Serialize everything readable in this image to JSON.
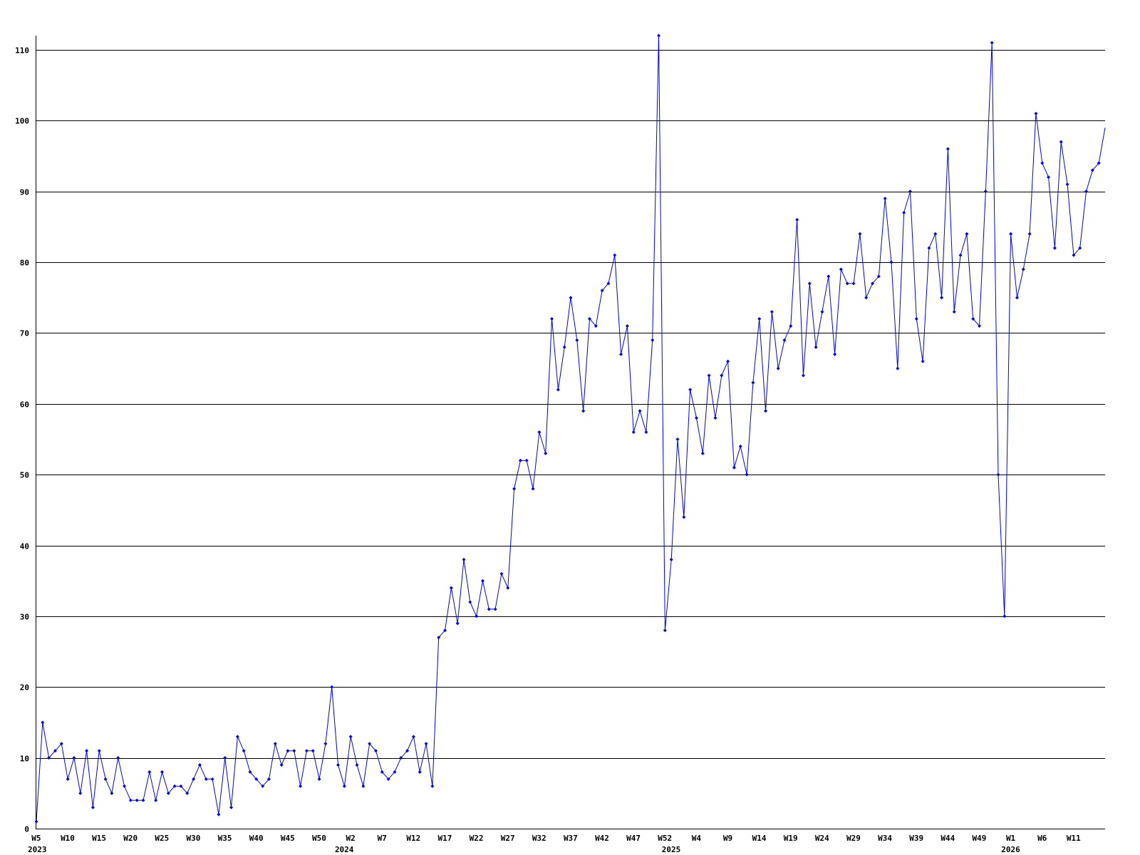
{
  "chart_data": {
    "type": "line",
    "title": "",
    "xlabel": "",
    "ylabel": "",
    "ylim": [
      0,
      112
    ],
    "grid": true,
    "legend": "none",
    "colors": {
      "series": "#0000ff",
      "grid": "#000000",
      "axis": "#000000",
      "text": "#000000"
    },
    "y_ticks": [
      0,
      10,
      20,
      30,
      40,
      50,
      60,
      70,
      80,
      90,
      100,
      110
    ],
    "x_ticks": [
      {
        "label": "W5",
        "index": 0
      },
      {
        "label": "W10",
        "index": 5
      },
      {
        "label": "W15",
        "index": 10
      },
      {
        "label": "W20",
        "index": 15
      },
      {
        "label": "W25",
        "index": 20
      },
      {
        "label": "W30",
        "index": 25
      },
      {
        "label": "W35",
        "index": 30
      },
      {
        "label": "W40",
        "index": 35
      },
      {
        "label": "W45",
        "index": 40
      },
      {
        "label": "W50",
        "index": 45
      },
      {
        "label": "W2",
        "index": 50
      },
      {
        "label": "W7",
        "index": 55
      },
      {
        "label": "W12",
        "index": 60
      },
      {
        "label": "W17",
        "index": 65
      },
      {
        "label": "W22",
        "index": 70
      },
      {
        "label": "W27",
        "index": 75
      },
      {
        "label": "W32",
        "index": 80
      },
      {
        "label": "W37",
        "index": 85
      },
      {
        "label": "W42",
        "index": 90
      },
      {
        "label": "W47",
        "index": 95
      },
      {
        "label": "W52",
        "index": 100
      },
      {
        "label": "W4",
        "index": 105
      },
      {
        "label": "W9",
        "index": 110
      },
      {
        "label": "W14",
        "index": 115
      },
      {
        "label": "W19",
        "index": 120
      },
      {
        "label": "W24",
        "index": 125
      },
      {
        "label": "W29",
        "index": 130
      },
      {
        "label": "W34",
        "index": 135
      },
      {
        "label": "W39",
        "index": 140
      },
      {
        "label": "W44",
        "index": 145
      },
      {
        "label": "W49",
        "index": 150
      },
      {
        "label": "W1",
        "index": 155
      },
      {
        "label": "W6",
        "index": 160
      },
      {
        "label": "W11",
        "index": 165
      }
    ],
    "year_labels": [
      {
        "label": "2023",
        "index": 0
      },
      {
        "label": "2024",
        "index": 49
      },
      {
        "label": "2025",
        "index": 101
      },
      {
        "label": "2026",
        "index": 155
      }
    ],
    "series": [
      {
        "values": [
          1,
          15,
          10,
          11,
          12,
          7,
          10,
          5,
          11,
          3,
          11,
          7,
          5,
          10,
          6,
          4,
          4,
          4,
          8,
          4,
          8,
          5,
          6,
          6,
          5,
          7,
          9,
          7,
          7,
          2,
          10,
          3,
          13,
          11,
          8,
          7,
          6,
          7,
          12,
          9,
          11,
          11,
          6,
          11,
          11,
          7,
          12,
          20,
          9,
          6,
          13,
          9,
          6,
          12,
          11,
          8,
          7,
          8,
          10,
          11,
          13,
          8,
          12,
          6,
          27,
          28,
          34,
          29,
          38,
          32,
          30,
          35,
          31,
          31,
          36,
          34,
          48,
          52,
          52,
          48,
          56,
          53,
          72,
          62,
          68,
          75,
          69,
          59,
          72,
          71,
          76,
          77,
          81,
          67,
          71,
          56,
          59,
          56,
          69,
          112,
          28,
          38,
          55,
          44,
          62,
          58,
          53,
          64,
          58,
          64,
          66,
          51,
          54,
          50,
          63,
          72,
          59,
          73,
          65,
          69,
          71,
          86,
          64,
          77,
          68,
          73,
          78,
          67,
          79,
          77,
          77,
          84,
          75,
          77,
          78,
          89,
          80,
          65,
          87,
          90,
          72,
          66,
          82,
          84,
          75,
          96,
          73,
          81,
          84,
          72,
          71,
          90,
          111,
          50,
          30,
          84,
          75,
          79,
          84,
          101,
          94,
          92,
          82,
          97,
          91,
          81,
          82,
          90,
          93,
          94,
          99
        ]
      }
    ]
  }
}
